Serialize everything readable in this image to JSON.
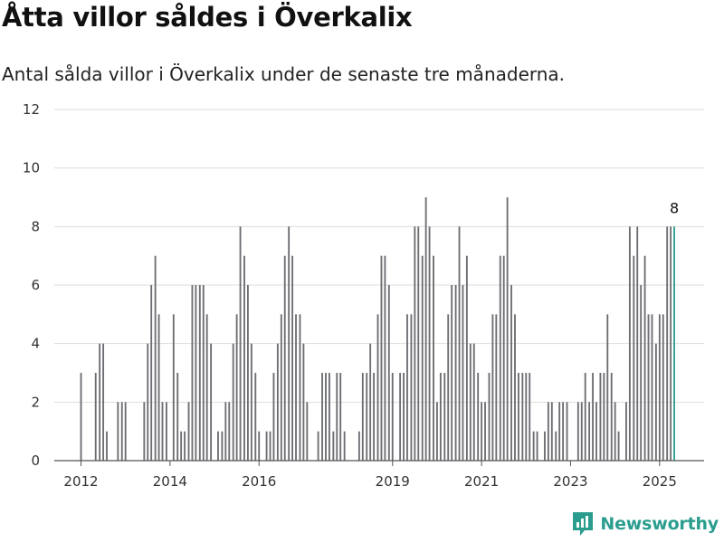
{
  "header": {
    "title": "Åtta villor såldes i Överkalix",
    "subtitle": "Antal sålda villor i Överkalix under de senaste tre månaderna."
  },
  "brand": {
    "name": "Newsworthy",
    "icon": "chart-logo-icon",
    "color": "#2a9d8f"
  },
  "colors": {
    "bar": "#6d6c72",
    "highlight": "#2a9d8f",
    "grid": "#dddddd",
    "axis": "#555555"
  },
  "chart_data": {
    "type": "bar",
    "title": "Åtta villor såldes i Överkalix",
    "subtitle": "Antal sålda villor i Överkalix under de senaste tre månaderna.",
    "xlabel": "",
    "ylabel": "",
    "ylim": [
      0,
      12
    ],
    "yticks": [
      0,
      2,
      4,
      6,
      8,
      10,
      12
    ],
    "xlim": [
      2011.4,
      2026.0
    ],
    "xticks": [
      2012,
      2014,
      2016,
      2019,
      2021,
      2023,
      2025
    ],
    "grid": true,
    "bar_width_years": 0.062,
    "values": [
      {
        "x": 2012.0,
        "y": 3
      },
      {
        "x": 2012.33,
        "y": 3
      },
      {
        "x": 2012.42,
        "y": 4
      },
      {
        "x": 2012.5,
        "y": 4
      },
      {
        "x": 2012.58,
        "y": 1
      },
      {
        "x": 2012.83,
        "y": 2
      },
      {
        "x": 2012.92,
        "y": 2
      },
      {
        "x": 2013.0,
        "y": 2
      },
      {
        "x": 2013.42,
        "y": 2
      },
      {
        "x": 2013.5,
        "y": 4
      },
      {
        "x": 2013.58,
        "y": 6
      },
      {
        "x": 2013.67,
        "y": 7
      },
      {
        "x": 2013.75,
        "y": 5
      },
      {
        "x": 2013.83,
        "y": 2
      },
      {
        "x": 2013.92,
        "y": 2
      },
      {
        "x": 2014.08,
        "y": 5
      },
      {
        "x": 2014.17,
        "y": 3
      },
      {
        "x": 2014.25,
        "y": 1
      },
      {
        "x": 2014.33,
        "y": 1
      },
      {
        "x": 2014.42,
        "y": 2
      },
      {
        "x": 2014.5,
        "y": 6
      },
      {
        "x": 2014.58,
        "y": 6
      },
      {
        "x": 2014.67,
        "y": 6
      },
      {
        "x": 2014.75,
        "y": 6
      },
      {
        "x": 2014.83,
        "y": 5
      },
      {
        "x": 2014.92,
        "y": 4
      },
      {
        "x": 2015.08,
        "y": 1
      },
      {
        "x": 2015.17,
        "y": 1
      },
      {
        "x": 2015.25,
        "y": 2
      },
      {
        "x": 2015.33,
        "y": 2
      },
      {
        "x": 2015.42,
        "y": 4
      },
      {
        "x": 2015.5,
        "y": 5
      },
      {
        "x": 2015.58,
        "y": 8
      },
      {
        "x": 2015.67,
        "y": 7
      },
      {
        "x": 2015.75,
        "y": 6
      },
      {
        "x": 2015.83,
        "y": 4
      },
      {
        "x": 2015.92,
        "y": 3
      },
      {
        "x": 2016.0,
        "y": 1
      },
      {
        "x": 2016.17,
        "y": 1
      },
      {
        "x": 2016.25,
        "y": 1
      },
      {
        "x": 2016.33,
        "y": 3
      },
      {
        "x": 2016.42,
        "y": 4
      },
      {
        "x": 2016.5,
        "y": 5
      },
      {
        "x": 2016.58,
        "y": 7
      },
      {
        "x": 2016.67,
        "y": 8
      },
      {
        "x": 2016.75,
        "y": 7
      },
      {
        "x": 2016.83,
        "y": 5
      },
      {
        "x": 2016.92,
        "y": 5
      },
      {
        "x": 2017.0,
        "y": 4
      },
      {
        "x": 2017.08,
        "y": 2
      },
      {
        "x": 2017.33,
        "y": 1
      },
      {
        "x": 2017.42,
        "y": 3
      },
      {
        "x": 2017.5,
        "y": 3
      },
      {
        "x": 2017.58,
        "y": 3
      },
      {
        "x": 2017.67,
        "y": 1
      },
      {
        "x": 2017.75,
        "y": 3
      },
      {
        "x": 2017.83,
        "y": 3
      },
      {
        "x": 2017.92,
        "y": 1
      },
      {
        "x": 2018.25,
        "y": 1
      },
      {
        "x": 2018.33,
        "y": 3
      },
      {
        "x": 2018.42,
        "y": 3
      },
      {
        "x": 2018.5,
        "y": 4
      },
      {
        "x": 2018.58,
        "y": 3
      },
      {
        "x": 2018.67,
        "y": 5
      },
      {
        "x": 2018.75,
        "y": 7
      },
      {
        "x": 2018.83,
        "y": 7
      },
      {
        "x": 2018.92,
        "y": 6
      },
      {
        "x": 2019.0,
        "y": 3
      },
      {
        "x": 2019.17,
        "y": 3
      },
      {
        "x": 2019.25,
        "y": 3
      },
      {
        "x": 2019.33,
        "y": 5
      },
      {
        "x": 2019.42,
        "y": 5
      },
      {
        "x": 2019.5,
        "y": 8
      },
      {
        "x": 2019.58,
        "y": 8
      },
      {
        "x": 2019.67,
        "y": 7
      },
      {
        "x": 2019.75,
        "y": 9
      },
      {
        "x": 2019.83,
        "y": 8
      },
      {
        "x": 2019.92,
        "y": 7
      },
      {
        "x": 2020.0,
        "y": 2
      },
      {
        "x": 2020.08,
        "y": 3
      },
      {
        "x": 2020.17,
        "y": 3
      },
      {
        "x": 2020.25,
        "y": 5
      },
      {
        "x": 2020.33,
        "y": 6
      },
      {
        "x": 2020.42,
        "y": 6
      },
      {
        "x": 2020.5,
        "y": 8
      },
      {
        "x": 2020.58,
        "y": 6
      },
      {
        "x": 2020.67,
        "y": 7
      },
      {
        "x": 2020.75,
        "y": 4
      },
      {
        "x": 2020.83,
        "y": 4
      },
      {
        "x": 2020.92,
        "y": 3
      },
      {
        "x": 2021.0,
        "y": 2
      },
      {
        "x": 2021.08,
        "y": 2
      },
      {
        "x": 2021.17,
        "y": 3
      },
      {
        "x": 2021.25,
        "y": 5
      },
      {
        "x": 2021.33,
        "y": 5
      },
      {
        "x": 2021.42,
        "y": 7
      },
      {
        "x": 2021.5,
        "y": 7
      },
      {
        "x": 2021.58,
        "y": 9
      },
      {
        "x": 2021.67,
        "y": 6
      },
      {
        "x": 2021.75,
        "y": 5
      },
      {
        "x": 2021.83,
        "y": 3
      },
      {
        "x": 2021.92,
        "y": 3
      },
      {
        "x": 2022.0,
        "y": 3
      },
      {
        "x": 2022.08,
        "y": 3
      },
      {
        "x": 2022.17,
        "y": 1
      },
      {
        "x": 2022.25,
        "y": 1
      },
      {
        "x": 2022.42,
        "y": 1
      },
      {
        "x": 2022.5,
        "y": 2
      },
      {
        "x": 2022.58,
        "y": 2
      },
      {
        "x": 2022.67,
        "y": 1
      },
      {
        "x": 2022.75,
        "y": 2
      },
      {
        "x": 2022.83,
        "y": 2
      },
      {
        "x": 2022.92,
        "y": 2
      },
      {
        "x": 2023.17,
        "y": 2
      },
      {
        "x": 2023.25,
        "y": 2
      },
      {
        "x": 2023.33,
        "y": 3
      },
      {
        "x": 2023.42,
        "y": 2
      },
      {
        "x": 2023.5,
        "y": 3
      },
      {
        "x": 2023.58,
        "y": 2
      },
      {
        "x": 2023.67,
        "y": 3
      },
      {
        "x": 2023.75,
        "y": 3
      },
      {
        "x": 2023.83,
        "y": 5
      },
      {
        "x": 2023.92,
        "y": 3
      },
      {
        "x": 2024.0,
        "y": 2
      },
      {
        "x": 2024.08,
        "y": 1
      },
      {
        "x": 2024.25,
        "y": 2
      },
      {
        "x": 2024.33,
        "y": 8
      },
      {
        "x": 2024.42,
        "y": 7
      },
      {
        "x": 2024.5,
        "y": 8
      },
      {
        "x": 2024.58,
        "y": 6
      },
      {
        "x": 2024.67,
        "y": 7
      },
      {
        "x": 2024.75,
        "y": 5
      },
      {
        "x": 2024.83,
        "y": 5
      },
      {
        "x": 2024.92,
        "y": 4
      },
      {
        "x": 2025.0,
        "y": 5
      },
      {
        "x": 2025.08,
        "y": 5
      },
      {
        "x": 2025.17,
        "y": 8
      },
      {
        "x": 2025.25,
        "y": 8
      },
      {
        "x": 2025.33,
        "y": 8,
        "highlight": true,
        "label": "8"
      }
    ]
  }
}
